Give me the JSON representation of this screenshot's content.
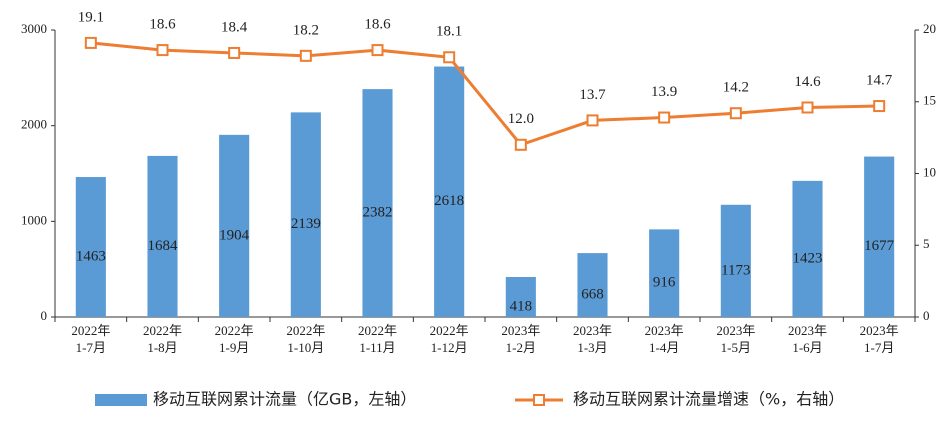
{
  "chart_data": {
    "type": "bar",
    "categories": [
      [
        "2022年",
        "1-7月"
      ],
      [
        "2022年",
        "1-8月"
      ],
      [
        "2022年",
        "1-9月"
      ],
      [
        "2022年",
        "1-10月"
      ],
      [
        "2022年",
        "1-11月"
      ],
      [
        "2022年",
        "1-12月"
      ],
      [
        "2023年",
        "1-2月"
      ],
      [
        "2023年",
        "1-3月"
      ],
      [
        "2023年",
        "1-4月"
      ],
      [
        "2023年",
        "1-5月"
      ],
      [
        "2023年",
        "1-6月"
      ],
      [
        "2023年",
        "1-7月"
      ]
    ],
    "series": [
      {
        "name": "移动互联网累计流量（亿GB，左轴）",
        "type": "bar",
        "color": "#5b9bd5",
        "values": [
          1463,
          1684,
          1904,
          2139,
          2382,
          2618,
          418,
          668,
          916,
          1173,
          1423,
          1677
        ]
      },
      {
        "name": "移动互联网累计流量增速（%，右轴）",
        "type": "line",
        "axis": "y2",
        "color": "#ed7d31",
        "values": [
          19.1,
          18.6,
          18.4,
          18.2,
          18.6,
          18.1,
          12.0,
          13.7,
          13.9,
          14.2,
          14.6,
          14.7
        ],
        "value_labels": [
          "19.1",
          "18.6",
          "18.4",
          "18.2",
          "18.6",
          "18.1",
          "12.0",
          "13.7",
          "13.9",
          "14.2",
          "14.6",
          "14.7"
        ]
      }
    ],
    "ylim": [
      0,
      3000
    ],
    "yticks": [
      0,
      1000,
      2000,
      3000
    ],
    "y2lim": [
      0,
      20
    ],
    "y2ticks": [
      0,
      5,
      10,
      15,
      20
    ],
    "grid": false,
    "legend": "bottom"
  }
}
